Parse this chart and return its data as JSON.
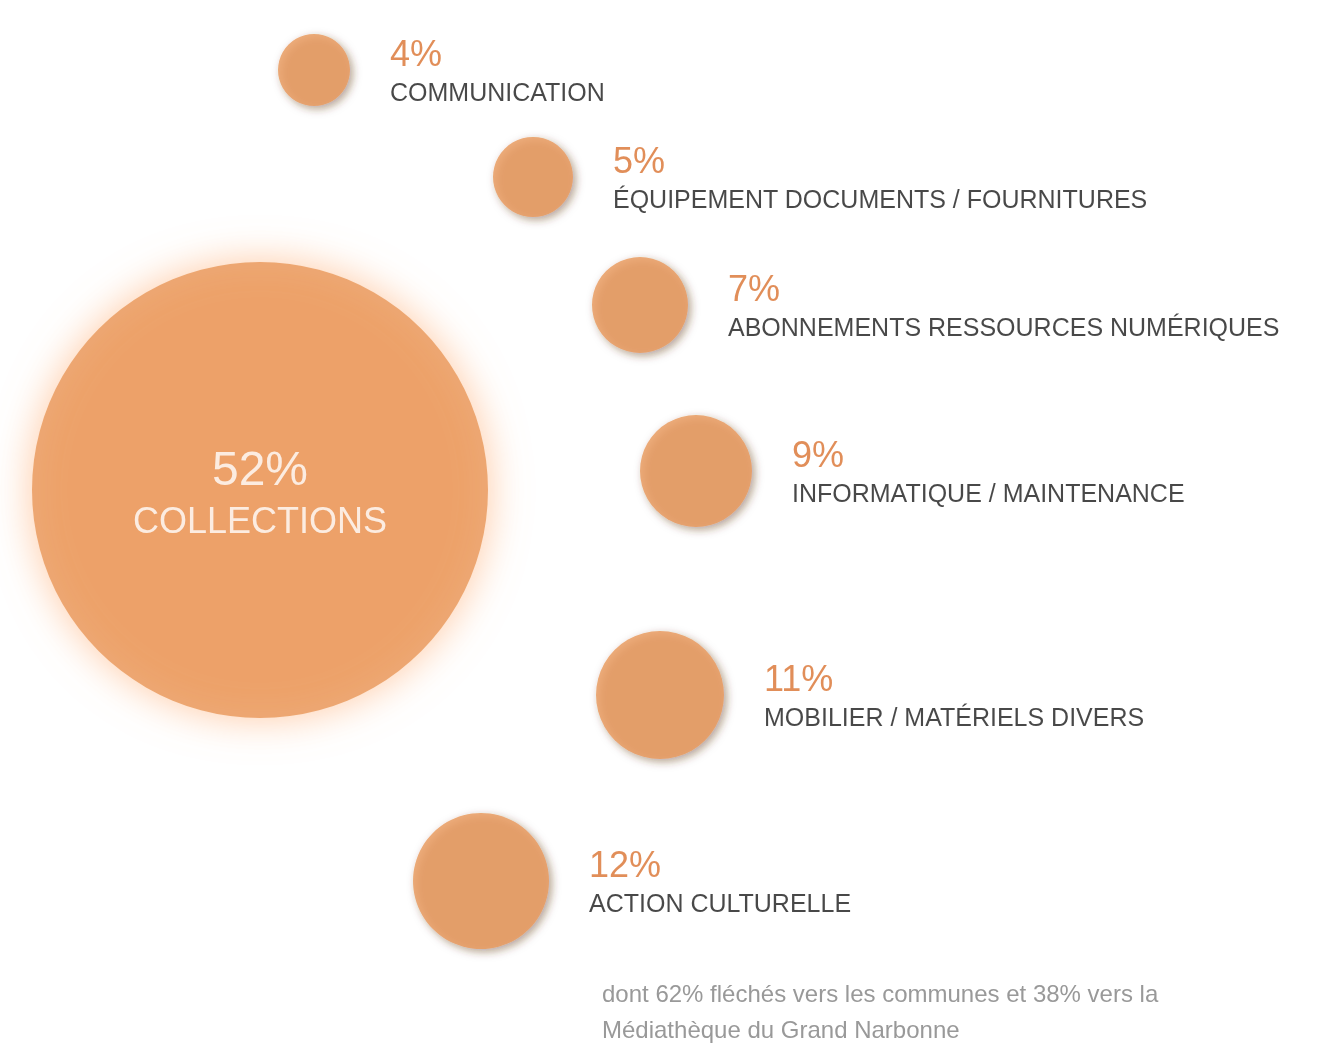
{
  "chart_data": {
    "type": "other",
    "categories": [
      "COLLECTIONS",
      "COMMUNICATION",
      "ÉQUIPEMENT DOCUMENTS / FOURNITURES",
      "ABONNEMENTS RESSOURCES NUMÉRIQUES",
      "INFORMATIQUE / MAINTENANCE",
      "MOBILIER / MATÉRIELS DIVERS",
      "ACTION CULTURELLE"
    ],
    "values": [
      52,
      4,
      5,
      7,
      9,
      11,
      12
    ],
    "value_labels": [
      "52%",
      "4%",
      "5%",
      "7%",
      "9%",
      "11%",
      "12%"
    ],
    "color": "#e8975a",
    "annotations": [
      "dont 62% fléchés vers les communes et 38% vers la Médiathèque du Grand Narbonne"
    ]
  }
}
